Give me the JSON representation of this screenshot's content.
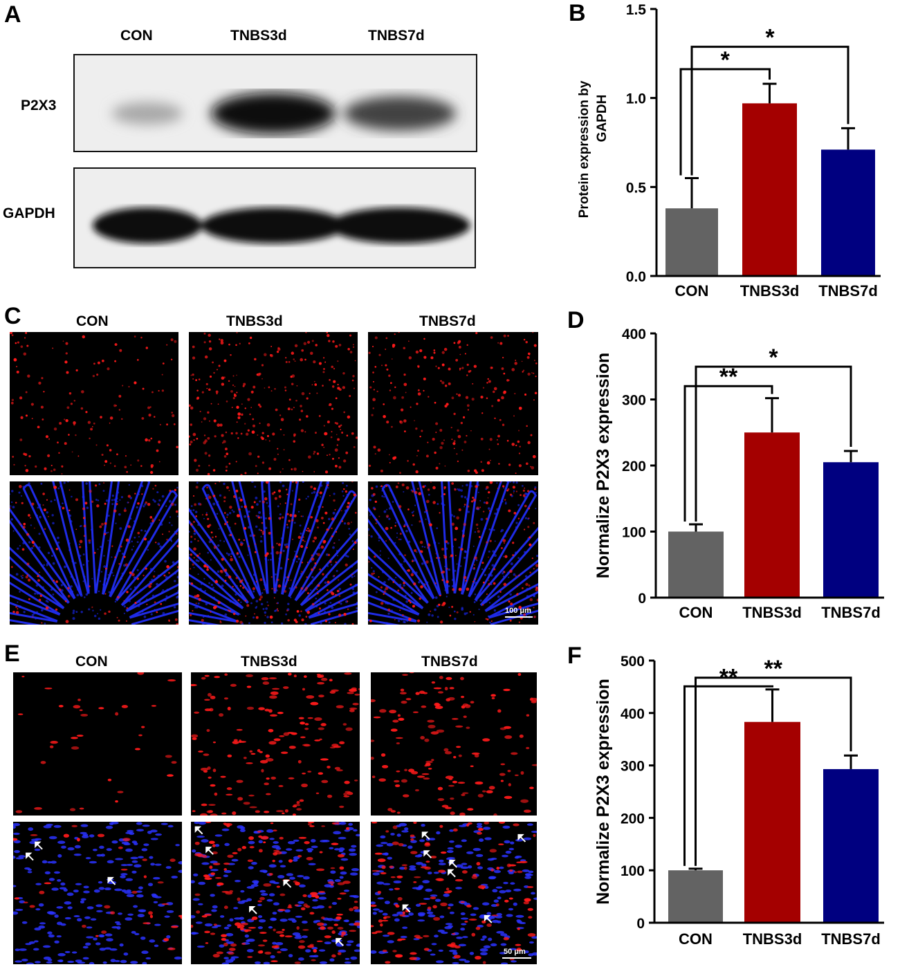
{
  "panels": {
    "A": {
      "letter": "A",
      "groups": [
        "CON",
        "TNBS3d",
        "TNBS7d"
      ],
      "rows": [
        "P2X3",
        "GAPDH"
      ],
      "band_intensity": {
        "P2X3": [
          0.3,
          1.0,
          0.75
        ],
        "GAPDH": [
          1.0,
          1.0,
          1.0
        ]
      }
    },
    "C": {
      "letter": "C",
      "groups": [
        "CON",
        "TNBS3d",
        "TNBS7d"
      ],
      "scale_bar": "100 μm",
      "red_density": [
        0.35,
        0.7,
        0.55
      ]
    },
    "E": {
      "letter": "E",
      "groups": [
        "CON",
        "TNBS3d",
        "TNBS7d"
      ],
      "scale_bar": "50 μm",
      "red_density": [
        0.15,
        0.75,
        0.6
      ]
    }
  },
  "colors": {
    "CON": "#636363",
    "TNBS3d": "#a40000",
    "TNBS7d": "#000080",
    "axis": "#000000"
  },
  "chart_data": [
    {
      "letter": "B",
      "type": "bar",
      "categories": [
        "CON",
        "TNBS3d",
        "TNBS7d"
      ],
      "values": [
        0.38,
        0.97,
        0.71
      ],
      "errors": [
        0.17,
        0.11,
        0.12
      ],
      "ylabel": "Protein expression by GAPDH",
      "ylim": [
        0,
        1.5
      ],
      "yticks": [
        0.0,
        0.5,
        1.0,
        1.5
      ],
      "ytick_labels": [
        "0.0",
        "0.5",
        "1.0",
        "1.5"
      ],
      "significance": [
        {
          "from": 0,
          "to": 1,
          "label": "*"
        },
        {
          "from": 0,
          "to": 2,
          "label": "*"
        }
      ]
    },
    {
      "letter": "D",
      "type": "bar",
      "categories": [
        "CON",
        "TNBS3d",
        "TNBS7d"
      ],
      "values": [
        100,
        250,
        205
      ],
      "errors": [
        11,
        52,
        17
      ],
      "ylabel": "Normalize P2X3 expression",
      "ylim": [
        0,
        400
      ],
      "yticks": [
        0,
        100,
        200,
        300,
        400
      ],
      "ytick_labels": [
        "0",
        "100",
        "200",
        "300",
        "400"
      ],
      "significance": [
        {
          "from": 0,
          "to": 1,
          "label": "**"
        },
        {
          "from": 0,
          "to": 2,
          "label": "*"
        }
      ]
    },
    {
      "letter": "F",
      "type": "bar",
      "categories": [
        "CON",
        "TNBS3d",
        "TNBS7d"
      ],
      "values": [
        100,
        383,
        293
      ],
      "errors": [
        3,
        62,
        26
      ],
      "ylabel": "Normalize P2X3 expression",
      "ylim": [
        0,
        500
      ],
      "yticks": [
        0,
        100,
        200,
        300,
        400,
        500
      ],
      "ytick_labels": [
        "0",
        "100",
        "200",
        "300",
        "400",
        "500"
      ],
      "significance": [
        {
          "from": 0,
          "to": 1,
          "label": "**"
        },
        {
          "from": 0,
          "to": 2,
          "label": "**"
        }
      ]
    }
  ]
}
